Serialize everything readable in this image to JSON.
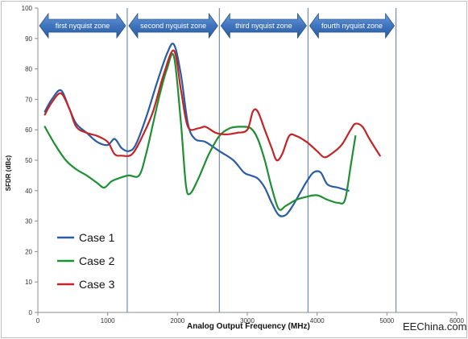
{
  "chart_data": {
    "type": "line",
    "xlabel": "Analog Output Frequency (MHz)",
    "ylabel": "SFDR (dBc)",
    "xlim": [
      0,
      6000
    ],
    "ylim": [
      0,
      100
    ],
    "x_ticks": [
      "0",
      "1000",
      "2000",
      "3000",
      "4000",
      "5000",
      "6000"
    ],
    "y_ticks": [
      "0",
      "10",
      "20",
      "30",
      "40",
      "50",
      "60",
      "70",
      "80",
      "90",
      "100"
    ],
    "grid": false,
    "legend_position": "bottom-left",
    "zone_boundaries": [
      1280,
      2600,
      3870,
      5130
    ],
    "zones": [
      {
        "label": "first nyquist zone",
        "x_start": 0,
        "x_end": 1280
      },
      {
        "label": "second nyquist zone",
        "x_start": 1280,
        "x_end": 2600
      },
      {
        "label": "third nyquist zone",
        "x_start": 2600,
        "x_end": 3870
      },
      {
        "label": "fourth nyquist zone",
        "x_start": 3870,
        "x_end": 5130
      }
    ],
    "series": [
      {
        "name": "Case 1",
        "color": "#2a5ca6",
        "points": [
          [
            100,
            66
          ],
          [
            200,
            70
          ],
          [
            330,
            73
          ],
          [
            450,
            67
          ],
          [
            550,
            62
          ],
          [
            700,
            59
          ],
          [
            850,
            56
          ],
          [
            1000,
            55
          ],
          [
            1100,
            57
          ],
          [
            1200,
            54
          ],
          [
            1300,
            53
          ],
          [
            1400,
            55
          ],
          [
            1550,
            64
          ],
          [
            1700,
            75
          ],
          [
            1850,
            85
          ],
          [
            1950,
            88
          ],
          [
            2050,
            78
          ],
          [
            2150,
            62
          ],
          [
            2250,
            57
          ],
          [
            2400,
            56
          ],
          [
            2600,
            53
          ],
          [
            2800,
            50
          ],
          [
            2950,
            46
          ],
          [
            3050,
            45
          ],
          [
            3150,
            44
          ],
          [
            3250,
            41
          ],
          [
            3350,
            36
          ],
          [
            3450,
            32
          ],
          [
            3550,
            32
          ],
          [
            3650,
            35
          ],
          [
            3750,
            39
          ],
          [
            3850,
            43
          ],
          [
            3950,
            46
          ],
          [
            4050,
            46
          ],
          [
            4150,
            42
          ],
          [
            4300,
            41
          ],
          [
            4450,
            40
          ]
        ]
      },
      {
        "name": "Case 2",
        "color": "#1e8f32",
        "points": [
          [
            100,
            61
          ],
          [
            250,
            55
          ],
          [
            400,
            50
          ],
          [
            550,
            47
          ],
          [
            700,
            45
          ],
          [
            850,
            42.5
          ],
          [
            950,
            41
          ],
          [
            1050,
            43
          ],
          [
            1150,
            44
          ],
          [
            1300,
            45
          ],
          [
            1450,
            45
          ],
          [
            1550,
            52
          ],
          [
            1650,
            62
          ],
          [
            1750,
            72
          ],
          [
            1850,
            80
          ],
          [
            1950,
            84
          ],
          [
            2050,
            62
          ],
          [
            2120,
            42
          ],
          [
            2180,
            39
          ],
          [
            2300,
            44
          ],
          [
            2450,
            52
          ],
          [
            2600,
            58
          ],
          [
            2750,
            60.5
          ],
          [
            2900,
            61
          ],
          [
            3050,
            60.5
          ],
          [
            3150,
            57
          ],
          [
            3250,
            50
          ],
          [
            3350,
            41
          ],
          [
            3450,
            34
          ],
          [
            3550,
            35
          ],
          [
            3700,
            37
          ],
          [
            3850,
            38
          ],
          [
            4000,
            38.5
          ],
          [
            4150,
            37
          ],
          [
            4300,
            36
          ],
          [
            4400,
            37
          ],
          [
            4480,
            48
          ],
          [
            4550,
            58
          ]
        ]
      },
      {
        "name": "Case 3",
        "color": "#c42327",
        "points": [
          [
            100,
            65
          ],
          [
            200,
            69
          ],
          [
            330,
            72
          ],
          [
            450,
            67
          ],
          [
            550,
            61
          ],
          [
            700,
            59
          ],
          [
            850,
            58
          ],
          [
            1000,
            56
          ],
          [
            1100,
            52
          ],
          [
            1200,
            51.5
          ],
          [
            1350,
            52
          ],
          [
            1500,
            58
          ],
          [
            1650,
            66
          ],
          [
            1800,
            78
          ],
          [
            1950,
            86
          ],
          [
            2050,
            73
          ],
          [
            2150,
            61
          ],
          [
            2300,
            60.5
          ],
          [
            2400,
            61
          ],
          [
            2550,
            59
          ],
          [
            2700,
            58.5
          ],
          [
            2850,
            59
          ],
          [
            3000,
            60
          ],
          [
            3080,
            66
          ],
          [
            3150,
            66
          ],
          [
            3250,
            60
          ],
          [
            3350,
            54
          ],
          [
            3420,
            50
          ],
          [
            3500,
            52
          ],
          [
            3600,
            58
          ],
          [
            3700,
            58
          ],
          [
            3850,
            56
          ],
          [
            4000,
            53
          ],
          [
            4100,
            51
          ],
          [
            4200,
            52
          ],
          [
            4350,
            55
          ],
          [
            4480,
            60
          ],
          [
            4550,
            62
          ],
          [
            4650,
            61
          ],
          [
            4750,
            57
          ],
          [
            4900,
            51.5
          ]
        ]
      }
    ]
  },
  "watermark": "EEChina.com"
}
